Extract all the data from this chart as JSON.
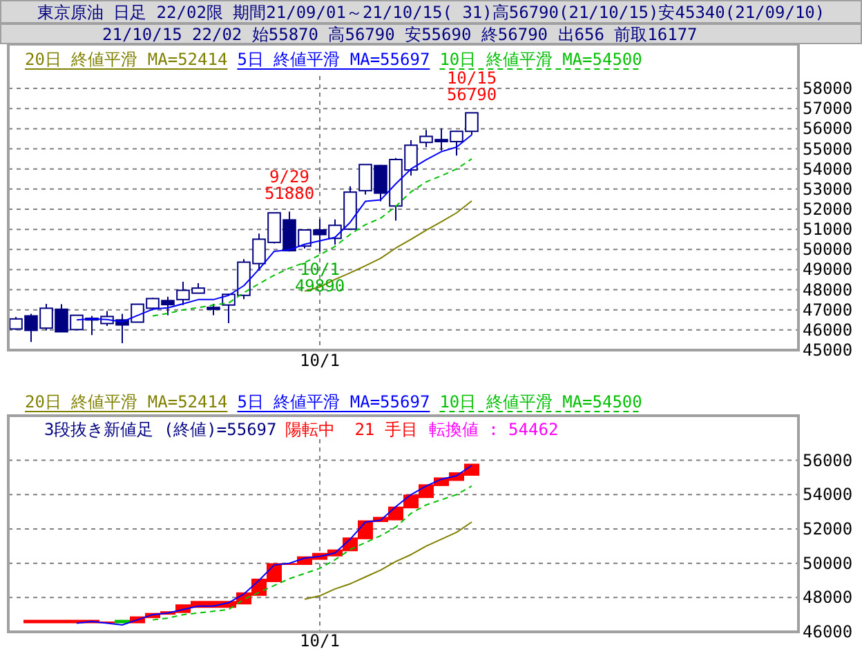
{
  "chart_data": [
    {
      "type": "candlestick",
      "title": "東京原油 日足 22/02限 期間21/09/01～21/10/15( 31)高56790(21/10/15)安45340(21/09/10)",
      "subtitle": "21/10/15 22/02 始55870 高56790 安55690 終56790 出656 前取16177",
      "color": "#000080",
      "categories": [
        null,
        null,
        null,
        null,
        null,
        null,
        null,
        null,
        null,
        null,
        null,
        null,
        null,
        null,
        null,
        null,
        null,
        null,
        null,
        null,
        "10/1",
        null,
        null,
        null,
        null,
        null,
        null,
        null,
        null,
        null,
        null,
        null,
        null,
        null,
        null,
        null,
        null,
        null,
        null,
        null,
        null,
        null,
        null,
        null,
        null,
        null,
        null,
        null,
        null,
        null,
        null,
        null
      ],
      "ohlc": [
        [
          46050,
          46650,
          46000,
          46550
        ],
        [
          46700,
          46800,
          45400,
          45980
        ],
        [
          46090,
          47300,
          45980,
          47080
        ],
        [
          47030,
          47280,
          45900,
          45910
        ],
        [
          46020,
          46750,
          46000,
          46730
        ],
        [
          46500,
          46700,
          45750,
          46580
        ],
        [
          46320,
          46940,
          46200,
          46670
        ],
        [
          46500,
          46800,
          45340,
          46250
        ],
        [
          46390,
          47300,
          46390,
          47280
        ],
        [
          47080,
          47600,
          47050,
          47560
        ],
        [
          47460,
          47650,
          46730,
          47260
        ],
        [
          47510,
          48400,
          47240,
          47970
        ],
        [
          47830,
          48330,
          47810,
          48080
        ],
        [
          47120,
          47300,
          46730,
          47030
        ],
        [
          47240,
          47800,
          46340,
          47770
        ],
        [
          47720,
          49520,
          47530,
          49370
        ],
        [
          49300,
          50790,
          48950,
          50510
        ],
        [
          50350,
          51830,
          50300,
          51820
        ],
        [
          51470,
          51880,
          49900,
          49940
        ],
        [
          50170,
          51000,
          50050,
          50970
        ],
        [
          50970,
          51510,
          49890,
          50740
        ],
        [
          50550,
          51490,
          50240,
          51200
        ],
        [
          51010,
          53140,
          50980,
          52850
        ],
        [
          52920,
          54230,
          52730,
          54220
        ],
        [
          54170,
          54200,
          52390,
          52800
        ],
        [
          52160,
          54550,
          51430,
          54470
        ],
        [
          53950,
          55430,
          53670,
          55180
        ],
        [
          55320,
          55940,
          55090,
          55620
        ],
        [
          55460,
          56010,
          54910,
          55360
        ],
        [
          55360,
          55900,
          54670,
          55870
        ],
        [
          55870,
          56790,
          55690,
          56790
        ],
        null,
        null,
        null,
        null,
        null,
        null,
        null,
        null,
        null,
        null,
        null,
        null,
        null,
        null,
        null,
        null,
        null,
        null,
        null,
        null,
        null
      ],
      "series": [
        {
          "name": "20日 終値平滑 MA=52414",
          "type": "line",
          "color": "#808000",
          "values": [
            null,
            null,
            null,
            null,
            null,
            null,
            null,
            null,
            null,
            null,
            null,
            null,
            null,
            null,
            null,
            null,
            null,
            null,
            null,
            47930,
            48140,
            48510,
            48840,
            49190,
            49560,
            50070,
            50500,
            50960,
            51380,
            51820,
            52410,
            null,
            null,
            null,
            null,
            null,
            null,
            null,
            null,
            null,
            null,
            null,
            null,
            null,
            null,
            null,
            null,
            null,
            null,
            null,
            null,
            null
          ]
        },
        {
          "name": "5日 終値平滑 MA=55697",
          "type": "line",
          "color": "#0000ff",
          "values": [
            null,
            null,
            null,
            null,
            46500,
            46550,
            46520,
            46410,
            46720,
            47030,
            47100,
            47300,
            47510,
            47510,
            47720,
            48200,
            49020,
            49910,
            49980,
            50260,
            50430,
            50600,
            51350,
            52390,
            52460,
            53260,
            54000,
            54460,
            54860,
            55090,
            55700,
            null,
            null,
            null,
            null,
            null,
            null,
            null,
            null,
            null,
            null,
            null,
            null,
            null,
            null,
            null,
            null,
            null,
            null,
            null,
            null,
            null
          ]
        },
        {
          "name": "10日 終値平滑 MA=54500",
          "type": "line",
          "color": "#00c000",
          "line_style": "dashed",
          "values": [
            null,
            null,
            null,
            null,
            null,
            null,
            null,
            null,
            null,
            46700,
            46820,
            47000,
            47110,
            47240,
            47340,
            47850,
            48300,
            48720,
            49070,
            49350,
            49730,
            50150,
            50750,
            51230,
            51550,
            52140,
            52860,
            53360,
            53660,
            54000,
            54500,
            null,
            null,
            null,
            null,
            null,
            null,
            null,
            null,
            null,
            null,
            null,
            null,
            null,
            null,
            null,
            null,
            null,
            null,
            null,
            null,
            null
          ]
        }
      ],
      "annotations": [
        {
          "text": "9/29\n51880",
          "y": 51880
        },
        {
          "text": "10/1\n49890",
          "x": "10/1",
          "y": 49890
        },
        {
          "text": "10/15\n56790",
          "y": 56790
        }
      ],
      "ylim": [
        45000,
        60200
      ],
      "yticks": [
        45000,
        46000,
        47000,
        48000,
        49000,
        50000,
        51000,
        52000,
        53000,
        54000,
        55000,
        56000,
        57000,
        58000
      ],
      "grid": true,
      "legend": "top left"
    },
    {
      "type": "bar",
      "title": "3段抜き新値足 (終値)=55697",
      "annotations": [
        "陽転中  21 手目",
        "転換値 : 54462"
      ],
      "categories": [
        null,
        null,
        null,
        null,
        null,
        null,
        null,
        null,
        null,
        null,
        null,
        null,
        null,
        null,
        null,
        null,
        null,
        null,
        null,
        null,
        "10/1",
        null,
        null,
        null,
        null,
        null,
        null,
        null,
        null,
        null,
        null,
        null,
        null,
        null,
        null,
        null,
        null,
        null,
        null,
        null,
        null,
        null,
        null,
        null,
        null,
        null,
        null,
        null,
        null,
        null,
        null,
        null
      ],
      "series": [
        {
          "type": "bar",
          "base": [
            null,
            46500,
            46500,
            46500,
            46500,
            46500,
            46500,
            46500,
            46500,
            46800,
            47000,
            47100,
            47400,
            47400,
            47400,
            47600,
            48100,
            48900,
            49900,
            49900,
            50200,
            50400,
            50700,
            51400,
            52400,
            52500,
            53200,
            53800,
            54500,
            54800,
            55100,
            null,
            null,
            null,
            null,
            null,
            null,
            null,
            null,
            null,
            null,
            null,
            null,
            null,
            null,
            null,
            null,
            null,
            null,
            null,
            null,
            null
          ],
          "values": [
            null,
            200,
            200,
            200,
            200,
            200,
            100,
            200,
            400,
            300,
            200,
            500,
            400,
            400,
            400,
            700,
            1000,
            1100,
            100,
            500,
            400,
            400,
            800,
            1100,
            300,
            800,
            800,
            800,
            500,
            500,
            700,
            null,
            null,
            null,
            null,
            null,
            null,
            null,
            null,
            null,
            null,
            null,
            null,
            null,
            null,
            null,
            null,
            null,
            null,
            null,
            null,
            null
          ],
          "colors": [
            null,
            "#ff0000",
            "#ff0000",
            "#ff0000",
            "#ff0000",
            "#ff0000",
            "#ff0000",
            "#00c000",
            "#ff0000",
            "#ff0000",
            "#ff0000",
            "#ff0000",
            "#ff0000",
            "#ff0000",
            "#ff0000",
            "#ff0000",
            "#ff0000",
            "#ff0000",
            "#ff0000",
            "#ff0000",
            "#ff0000",
            "#ff0000",
            "#ff0000",
            "#ff0000",
            "#ff0000",
            "#ff0000",
            "#ff0000",
            "#ff0000",
            "#ff0000",
            "#ff0000",
            "#ff0000",
            null,
            null,
            null,
            null,
            null,
            null,
            null,
            null,
            null,
            null,
            null,
            null,
            null,
            null,
            null,
            null,
            null,
            null,
            null,
            null,
            null
          ]
        },
        {
          "name": "20日 終値平滑 MA=52414",
          "type": "line",
          "color": "#808000",
          "values": [
            null,
            null,
            null,
            null,
            null,
            null,
            null,
            null,
            null,
            null,
            null,
            null,
            null,
            null,
            null,
            null,
            null,
            null,
            null,
            47900,
            48100,
            48500,
            48800,
            49200,
            49600,
            50100,
            50500,
            51000,
            51400,
            51800,
            52400,
            null,
            null,
            null,
            null,
            null,
            null,
            null,
            null,
            null,
            null,
            null,
            null,
            null,
            null,
            null,
            null,
            null,
            null,
            null,
            null,
            null
          ]
        },
        {
          "name": "5日 終値平滑 MA=55697",
          "type": "line",
          "color": "#0000ff",
          "values": [
            null,
            null,
            null,
            null,
            46500,
            46600,
            46500,
            46400,
            46700,
            47000,
            47100,
            47300,
            47500,
            47500,
            47700,
            48200,
            49000,
            49900,
            50000,
            50300,
            50400,
            50600,
            51400,
            52400,
            52500,
            53300,
            54000,
            54500,
            54900,
            55100,
            55700,
            null,
            null,
            null,
            null,
            null,
            null,
            null,
            null,
            null,
            null,
            null,
            null,
            null,
            null,
            null,
            null,
            null,
            null,
            null,
            null,
            null
          ]
        },
        {
          "name": "10日 終値平滑 MA=54500",
          "type": "line",
          "color": "#00c000",
          "line_style": "dashed",
          "values": [
            null,
            null,
            null,
            null,
            null,
            null,
            null,
            null,
            null,
            46700,
            46800,
            47000,
            47100,
            47200,
            47300,
            47900,
            48300,
            48700,
            49100,
            49400,
            49700,
            50200,
            50800,
            51200,
            51600,
            52100,
            52900,
            53400,
            53700,
            54000,
            54500,
            null,
            null,
            null,
            null,
            null,
            null,
            null,
            null,
            null,
            null,
            null,
            null,
            null,
            null,
            null,
            null,
            null,
            null,
            null,
            null,
            null
          ]
        }
      ],
      "ylim": [
        46000,
        58600
      ],
      "yticks": [
        46000,
        48000,
        50000,
        52000,
        54000,
        56000
      ],
      "grid": true,
      "legend": "top left"
    }
  ]
}
